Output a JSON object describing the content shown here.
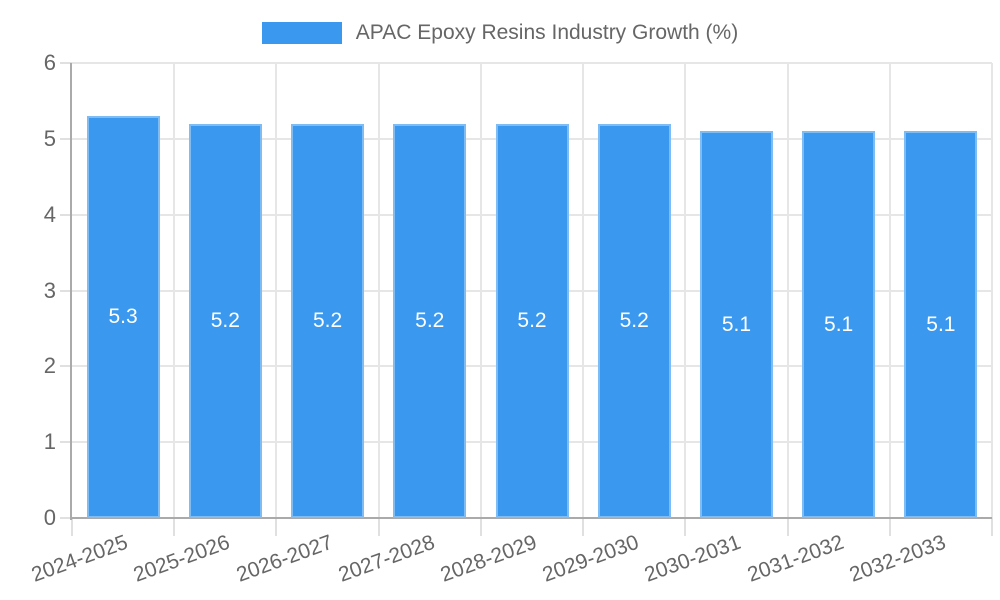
{
  "legend": {
    "label": "APAC Epoxy Resins Industry Growth (%)"
  },
  "chart_data": {
    "type": "bar",
    "title": "APAC Epoxy Resins Industry Growth (%)",
    "categories": [
      "2024-2025",
      "2025-2026",
      "2026-2027",
      "2027-2028",
      "2028-2029",
      "2029-2030",
      "2030-2031",
      "2031-2032",
      "2032-2033"
    ],
    "series": [
      {
        "name": "APAC Epoxy Resins Industry Growth (%)",
        "values": [
          5.3,
          5.2,
          5.2,
          5.2,
          5.2,
          5.2,
          5.1,
          5.1,
          5.1
        ],
        "value_labels": [
          "5.3",
          "5.2",
          "5.2",
          "5.2",
          "5.2",
          "5.2",
          "5.1",
          "5.1",
          "5.1"
        ]
      }
    ],
    "xlabel": "",
    "ylabel": "",
    "ylim": [
      0,
      6
    ],
    "yticks": [
      0,
      1,
      2,
      3,
      4,
      5,
      6
    ],
    "ytick_labels": [
      "0",
      "1",
      "2",
      "3",
      "4",
      "5",
      "6"
    ],
    "grid": true,
    "legend_position": "top",
    "colors": {
      "bar": "#3a99ee",
      "bar_border": "#7fbcf3",
      "grid": "#e6e6e6",
      "tick": "#e0e0e0",
      "axis": "#aaaaaa",
      "tick_label": "#666666",
      "value_label": "#ffffff"
    }
  }
}
